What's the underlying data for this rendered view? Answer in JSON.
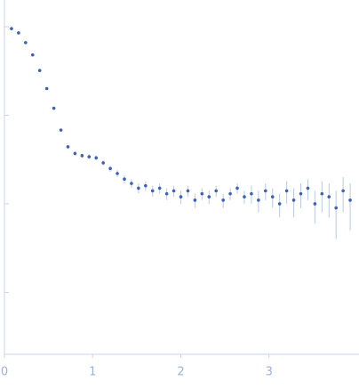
{
  "chart_data": {
    "type": "scatter",
    "log_y": true,
    "x": [
      0.08,
      0.16,
      0.24,
      0.32,
      0.4,
      0.48,
      0.56,
      0.64,
      0.72,
      0.8,
      0.88,
      0.96,
      1.04,
      1.12,
      1.2,
      1.28,
      1.36,
      1.44,
      1.52,
      1.6,
      1.68,
      1.76,
      1.84,
      1.92,
      2.0,
      2.08,
      2.16,
      2.24,
      2.32,
      2.4,
      2.48,
      2.56,
      2.64,
      2.72,
      2.8,
      2.88,
      2.96,
      3.04,
      3.12,
      3.2,
      3.28,
      3.36,
      3.44,
      3.52,
      3.6,
      3.68,
      3.76,
      3.84,
      3.92
    ],
    "values": [
      0.95,
      0.85,
      0.66,
      0.48,
      0.32,
      0.2,
      0.12,
      0.068,
      0.044,
      0.037,
      0.035,
      0.034,
      0.033,
      0.029,
      0.025,
      0.022,
      0.019,
      0.017,
      0.015,
      0.016,
      0.014,
      0.015,
      0.013,
      0.014,
      0.012,
      0.014,
      0.011,
      0.013,
      0.012,
      0.014,
      0.011,
      0.013,
      0.015,
      0.012,
      0.013,
      0.011,
      0.014,
      0.012,
      0.01,
      0.014,
      0.011,
      0.013,
      0.015,
      0.01,
      0.013,
      0.012,
      0.009,
      0.014,
      0.011
    ],
    "errors": [
      0.05,
      0.03,
      0.02,
      0.01,
      0.006,
      0.004,
      0.003,
      0.002,
      0.002,
      0.002,
      0.002,
      0.002,
      0.002,
      0.002,
      0.002,
      0.002,
      0.002,
      0.002,
      0.002,
      0.002,
      0.002,
      0.002,
      0.002,
      0.002,
      0.002,
      0.002,
      0.002,
      0.002,
      0.002,
      0.002,
      0.002,
      0.002,
      0.002,
      0.002,
      0.003,
      0.003,
      0.003,
      0.003,
      0.003,
      0.004,
      0.004,
      0.004,
      0.004,
      0.004,
      0.005,
      0.005,
      0.005,
      0.006,
      0.006
    ],
    "color": "#3a62b8",
    "error_color": "#b9c9e8",
    "xlim": [
      0,
      4.02
    ],
    "xticks": [
      0,
      1,
      2,
      3
    ],
    "ylim": [
      0.0002,
      2
    ],
    "yticks": [
      1,
      0.1,
      0.01,
      0.001
    ]
  }
}
